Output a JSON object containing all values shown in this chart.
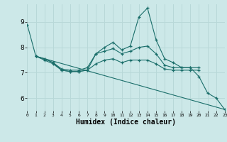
{
  "xlabel": "Humidex (Indice chaleur)",
  "background_color": "#cce8e8",
  "grid_color": "#b8d8d8",
  "line_color": "#1a6e6a",
  "xlim": [
    0,
    23
  ],
  "ylim": [
    5.5,
    9.7
  ],
  "yticks": [
    6,
    7,
    8,
    9
  ],
  "xticks": [
    0,
    1,
    2,
    3,
    4,
    5,
    6,
    7,
    8,
    9,
    10,
    11,
    12,
    13,
    14,
    15,
    16,
    17,
    18,
    19,
    20,
    21,
    22,
    23
  ],
  "lines": [
    {
      "x": [
        0,
        1,
        2,
        3,
        4,
        5,
        6,
        7,
        8,
        9,
        10,
        11,
        12,
        13,
        14,
        15,
        16,
        17,
        18,
        19,
        20,
        21,
        22,
        23
      ],
      "y": [
        8.9,
        7.65,
        7.55,
        7.4,
        7.1,
        7.05,
        7.05,
        7.1,
        7.75,
        8.0,
        8.2,
        7.9,
        8.05,
        9.2,
        9.55,
        8.3,
        7.55,
        7.4,
        7.2,
        7.2,
        6.85,
        6.2,
        6.0,
        5.55
      ],
      "marker": true
    },
    {
      "x": [
        1,
        2,
        3,
        4,
        5,
        6,
        7,
        8,
        9,
        10,
        11,
        12,
        13,
        14,
        15,
        16,
        17,
        18,
        19,
        20
      ],
      "y": [
        7.65,
        7.55,
        7.4,
        7.15,
        7.1,
        7.1,
        7.2,
        7.75,
        7.85,
        7.95,
        7.75,
        7.85,
        8.0,
        8.05,
        7.75,
        7.3,
        7.2,
        7.2,
        7.2,
        7.2
      ],
      "marker": true
    },
    {
      "x": [
        1,
        2,
        3,
        4,
        5,
        6,
        7,
        8,
        9,
        10,
        11,
        12,
        13,
        14,
        15,
        16,
        17,
        18,
        19,
        20
      ],
      "y": [
        7.65,
        7.5,
        7.35,
        7.1,
        7.05,
        7.05,
        7.1,
        7.35,
        7.5,
        7.55,
        7.4,
        7.5,
        7.5,
        7.5,
        7.35,
        7.15,
        7.1,
        7.1,
        7.1,
        7.1
      ],
      "marker": true
    },
    {
      "x": [
        1,
        23
      ],
      "y": [
        7.65,
        5.55
      ],
      "marker": false
    }
  ]
}
